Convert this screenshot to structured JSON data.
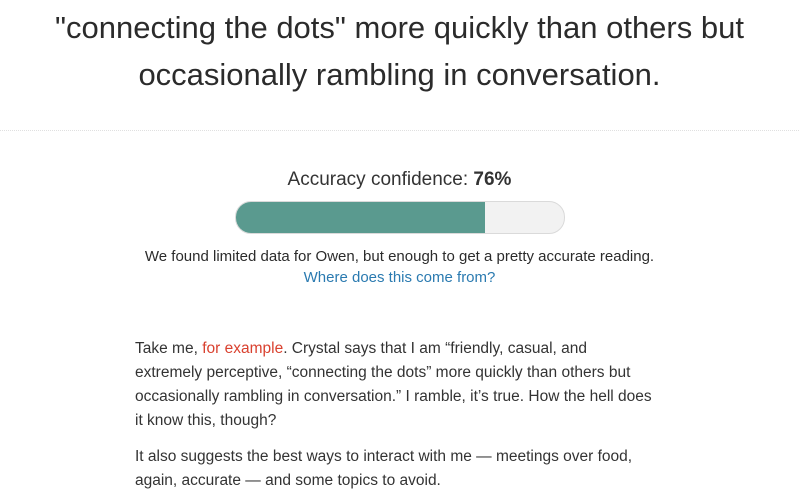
{
  "headline": {
    "line1": "\"connecting the dots\" more quickly than others but",
    "line2": "occasionally rambling in conversation."
  },
  "confidence": {
    "label": "Accuracy confidence: ",
    "percent_text": "76%",
    "value": 0.76,
    "bar_color": "#5a9a8f",
    "track_color": "#f2f2f2"
  },
  "data_note": {
    "text": "We found limited data for Owen, but enough to get a pretty accurate reading.",
    "link_text": "Where does this come from?",
    "link_color": "#2a7ab0"
  },
  "article": {
    "p1": {
      "pre": "Take me, ",
      "link": "for example",
      "line1_post": ". Crystal says that I am “friendly, casual, and",
      "line2": "extremely perceptive, “connecting the dots” more quickly than others but",
      "line3": "occasionally rambling in conversation.” I ramble, it’s true. How the hell does",
      "line4": "it know this, though?"
    },
    "p2": {
      "line1": "It also suggests the best ways to interact with me — meetings over food,",
      "line2": "again, accurate — and some topics to avoid."
    },
    "link_color": "#d9412f"
  }
}
